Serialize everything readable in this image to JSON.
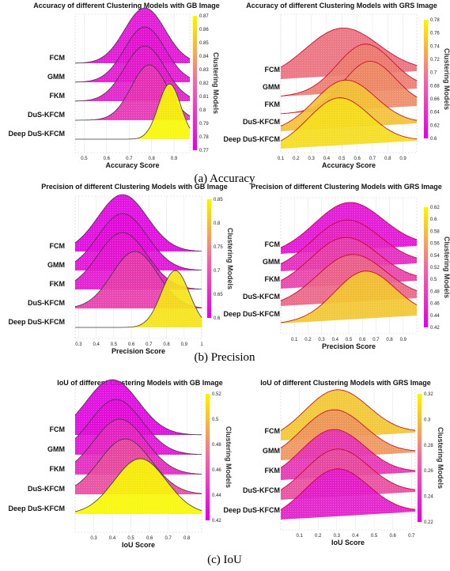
{
  "captions": [
    "(a) Accuracy",
    "(b) Precision",
    "(c) IoU"
  ],
  "colors": {
    "low": "#e000e0",
    "high": "#f7f700",
    "edge_gb": "#3a3a3a",
    "edge_grs": "#c8001e"
  },
  "chart_data": [
    {
      "type": "area",
      "panel": "accuracy-gb",
      "title": "Accuracy of different Clustering Models with GB Image",
      "xlabel": "Accuracy Score",
      "xticks": [
        "0.5",
        "0.6",
        "0.7",
        "0.8",
        "0.9"
      ],
      "xlim": [
        0.46,
        0.97
      ],
      "categories": [
        "FCM",
        "GMM",
        "FKM",
        "DuS-KFCM",
        "Deep DuS-KFCM"
      ],
      "series": [
        {
          "name": "FCM",
          "peak": 0.77,
          "spread": 0.09,
          "level": 0.775
        },
        {
          "name": "GMM",
          "peak": 0.77,
          "spread": 0.09,
          "level": 0.777
        },
        {
          "name": "FKM",
          "peak": 0.77,
          "spread": 0.09,
          "level": 0.78
        },
        {
          "name": "DuS-KFCM",
          "peak": 0.79,
          "spread": 0.08,
          "level": 0.79
        },
        {
          "name": "Deep DuS-KFCM",
          "peak": 0.88,
          "spread": 0.05,
          "level": 0.875
        }
      ],
      "colorbar": {
        "title": "Clustering Models",
        "range": [
          0.77,
          0.87
        ],
        "ticks": [
          "0.87",
          "0.86",
          "0.85",
          "0.84",
          "0.83",
          "0.82",
          "0.81",
          "0.8",
          "0.79",
          "0.78",
          "0.77"
        ]
      },
      "grid": true
    },
    {
      "type": "area",
      "panel": "accuracy-grs",
      "title": "Accuracy of different Clustering Models with GRS Image",
      "xlabel": "Accuracy Score",
      "xticks": [
        "0.1",
        "0.2",
        "0.3",
        "0.4",
        "0.5",
        "0.6",
        "0.7",
        "0.8",
        "0.9"
      ],
      "xlim": [
        0.1,
        0.99
      ],
      "categories": [
        "FCM",
        "GMM",
        "FKM",
        "DuS-KFCM",
        "Deep DuS-KFCM"
      ],
      "series": [
        {
          "name": "FCM",
          "peak": 0.5,
          "spread": 0.24,
          "level": 0.68
        },
        {
          "name": "GMM",
          "peak": 0.65,
          "spread": 0.18,
          "level": 0.69
        },
        {
          "name": "FKM",
          "peak": 0.68,
          "spread": 0.17,
          "level": 0.7
        },
        {
          "name": "DuS-KFCM",
          "peak": 0.52,
          "spread": 0.2,
          "level": 0.74
        },
        {
          "name": "Deep DuS-KFCM",
          "peak": 0.48,
          "spread": 0.2,
          "level": 0.76
        }
      ],
      "colorbar": {
        "title": "Clustering Models",
        "range": [
          0.6,
          0.78
        ],
        "ticks": [
          "0.78",
          "0.76",
          "0.74",
          "0.72",
          "0.7",
          "0.68",
          "0.66",
          "0.64",
          "0.62",
          "0.6"
        ]
      },
      "grid": true
    },
    {
      "type": "area",
      "panel": "precision-gb",
      "title": "Precision of different Clustering Models with GB Image",
      "xlabel": "Precision Score",
      "xticks": [
        "0.3",
        "0.4",
        "0.5",
        "0.6",
        "0.7",
        "0.8",
        "0.9",
        "1"
      ],
      "xlim": [
        0.28,
        1.0
      ],
      "categories": [
        "FCM",
        "GMM",
        "FKM",
        "DuS-KFCM",
        "Deep DuS-KFCM"
      ],
      "series": [
        {
          "name": "FCM",
          "peak": 0.55,
          "spread": 0.14,
          "level": 0.6
        },
        {
          "name": "GMM",
          "peak": 0.55,
          "spread": 0.14,
          "level": 0.61
        },
        {
          "name": "FKM",
          "peak": 0.55,
          "spread": 0.14,
          "level": 0.62
        },
        {
          "name": "DuS-KFCM",
          "peak": 0.62,
          "spread": 0.13,
          "level": 0.66
        },
        {
          "name": "Deep DuS-KFCM",
          "peak": 0.85,
          "spread": 0.08,
          "level": 0.83
        }
      ],
      "colorbar": {
        "title": "Clustering Models",
        "range": [
          0.6,
          0.85
        ],
        "ticks": [
          "0.85",
          "0.8",
          "0.75",
          "0.7",
          "0.65",
          "0.6"
        ]
      },
      "grid": true
    },
    {
      "type": "area",
      "panel": "precision-grs",
      "title": "Precision of different Clustering Models with GRS Image",
      "xlabel": "Precision Score",
      "xticks": [
        "0.1",
        "0.2",
        "0.3",
        "0.4",
        "0.5",
        "0.6",
        "0.7",
        "0.8",
        "0.9"
      ],
      "xlim": [
        0.0,
        1.0
      ],
      "categories": [
        "FCM",
        "GMM",
        "FKM",
        "DuS-KFCM",
        "Deep DuS-KFCM"
      ],
      "series": [
        {
          "name": "FCM",
          "peak": 0.5,
          "spread": 0.25,
          "level": 0.43
        },
        {
          "name": "GMM",
          "peak": 0.48,
          "spread": 0.25,
          "level": 0.45
        },
        {
          "name": "FKM",
          "peak": 0.47,
          "spread": 0.25,
          "level": 0.47
        },
        {
          "name": "DuS-KFCM",
          "peak": 0.52,
          "spread": 0.25,
          "level": 0.5
        },
        {
          "name": "Deep DuS-KFCM",
          "peak": 0.62,
          "spread": 0.22,
          "level": 0.58
        }
      ],
      "colorbar": {
        "title": "Clustering Models",
        "range": [
          0.42,
          0.62
        ],
        "ticks": [
          "0.62",
          "0.6",
          "0.58",
          "0.56",
          "0.54",
          "0.52",
          "0.5",
          "0.48",
          "0.46",
          "0.44",
          "0.42"
        ]
      },
      "grid": true
    },
    {
      "type": "area",
      "panel": "iou-gb",
      "title": "IoU of different Clustering Models with GB Image",
      "xlabel": "IoU Score",
      "xticks": [
        "0.3",
        "0.4",
        "0.5",
        "0.6",
        "0.7",
        "0.8"
      ],
      "xlim": [
        0.2,
        0.88
      ],
      "categories": [
        "FCM",
        "GMM",
        "FKM",
        "DuS-KFCM",
        "Deep DuS-KFCM"
      ],
      "series": [
        {
          "name": "FCM",
          "peak": 0.4,
          "spread": 0.14,
          "level": 0.42
        },
        {
          "name": "GMM",
          "peak": 0.42,
          "spread": 0.14,
          "level": 0.425
        },
        {
          "name": "FKM",
          "peak": 0.44,
          "spread": 0.14,
          "level": 0.435
        },
        {
          "name": "DuS-KFCM",
          "peak": 0.47,
          "spread": 0.14,
          "level": 0.45
        },
        {
          "name": "Deep DuS-KFCM",
          "peak": 0.55,
          "spread": 0.14,
          "level": 0.525
        }
      ],
      "colorbar": {
        "title": "Clustering Models",
        "range": [
          0.42,
          0.52
        ],
        "ticks": [
          "0.52",
          "0.5",
          "0.48",
          "0.46",
          "0.44",
          "0.42"
        ]
      },
      "grid": true
    },
    {
      "type": "area",
      "panel": "iou-grs",
      "title": "IoU of different Clustering Models with GRS Image",
      "xlabel": "IoU Score",
      "xticks": [
        "0.1",
        "0.2",
        "0.3",
        "0.4",
        "0.5",
        "0.6",
        "0.7"
      ],
      "xlim": [
        0.0,
        0.72
      ],
      "categories": [
        "FCM",
        "GMM",
        "FKM",
        "DuS-KFCM",
        "Deep DuS-KFCM"
      ],
      "series": [
        {
          "name": "FCM",
          "peak": 0.3,
          "spread": 0.17,
          "level": 0.3
        },
        {
          "name": "GMM",
          "peak": 0.28,
          "spread": 0.17,
          "level": 0.28
        },
        {
          "name": "FKM",
          "peak": 0.28,
          "spread": 0.17,
          "level": 0.24
        },
        {
          "name": "DuS-KFCM",
          "peak": 0.3,
          "spread": 0.17,
          "level": 0.25
        },
        {
          "name": "Deep DuS-KFCM",
          "peak": 0.3,
          "spread": 0.17,
          "level": 0.23
        }
      ],
      "colorbar": {
        "title": "Clustering Models",
        "range": [
          0.22,
          0.32
        ],
        "ticks": [
          "0.32",
          "0.3",
          "0.28",
          "0.26",
          "0.24",
          "0.22"
        ]
      },
      "grid": true
    }
  ]
}
